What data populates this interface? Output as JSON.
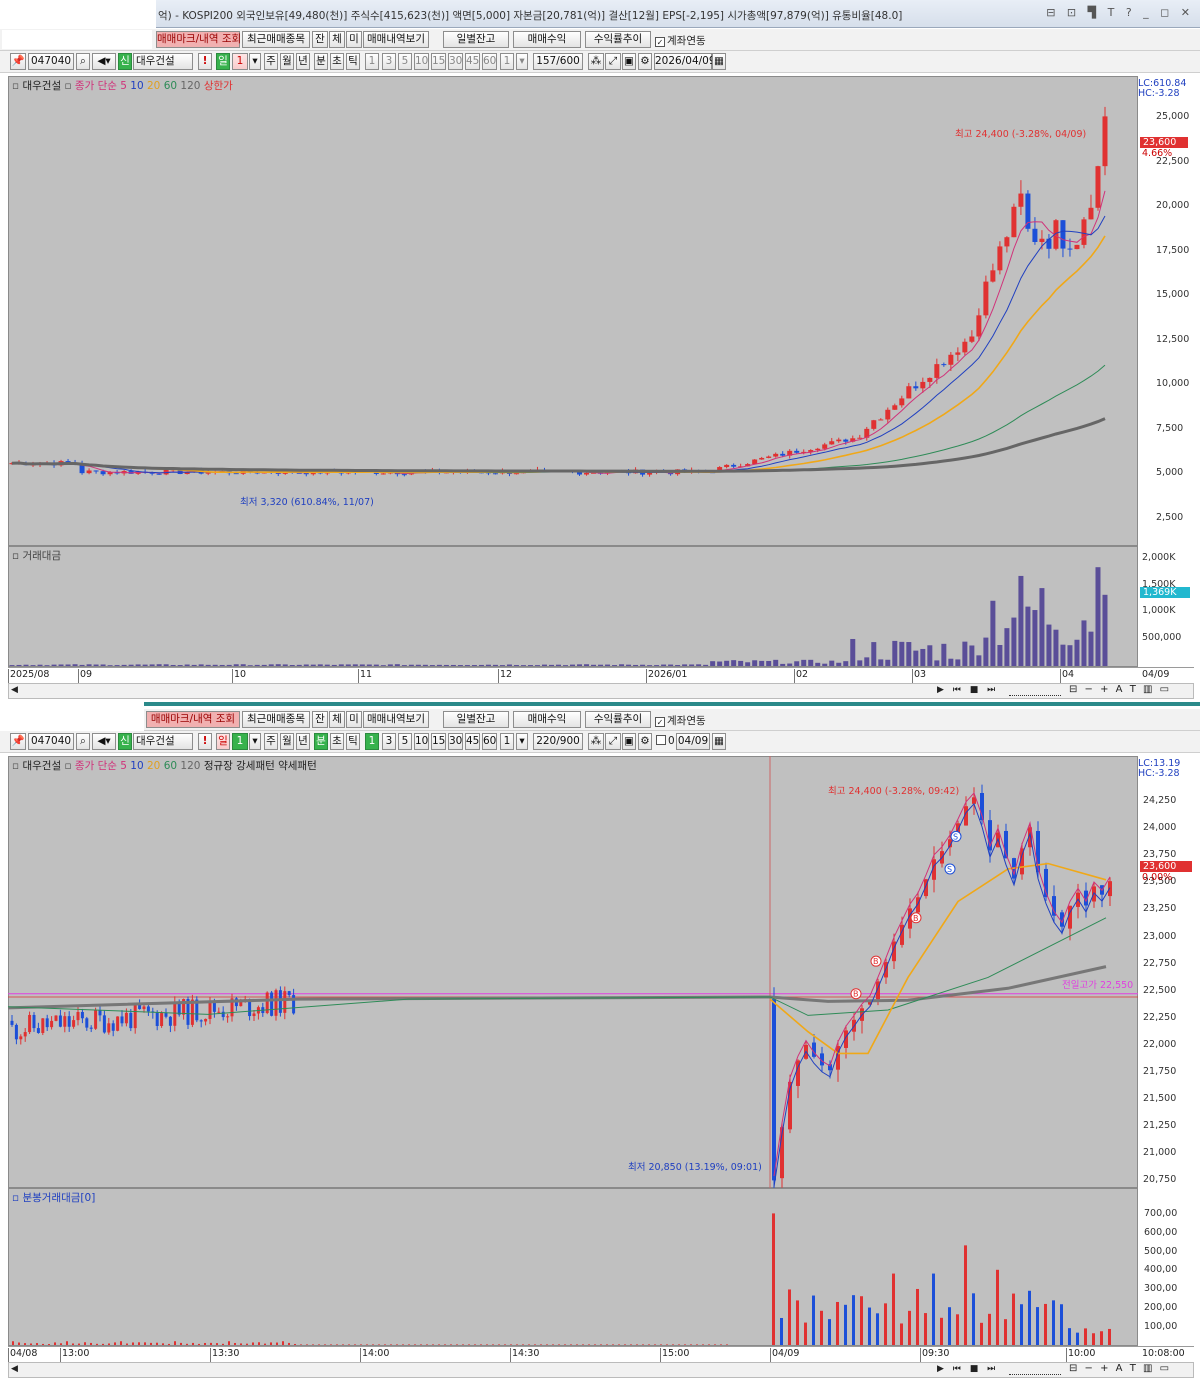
{
  "window": {
    "title_info": "억) - KOSPI200 외국인보유[49,480(천)] 주식수[415,623(천)] 액면[5,000] 자본금[20,781(억)] 결산[12월] EPS[-2,195] 시가총액[97,879(억)] 유통비율[48.0]",
    "controls": "⊟ ⊡ ▜ T ? _ ◻ ✕"
  },
  "toolbar_top": {
    "buttons": [
      "매매마크/내역 조회",
      "최근매매종목",
      "잔",
      "체",
      "미",
      "매매내역보기",
      "일별잔고",
      "매매수익",
      "수익률추이"
    ],
    "checkbox_label": "계좌연동"
  },
  "chart1": {
    "code": "047040",
    "badge": "신",
    "name": "대우건설",
    "periods": [
      "주",
      "월",
      "년",
      "분",
      "초",
      "틱"
    ],
    "active_period": "일",
    "count": "1",
    "intervals": [
      "1",
      "3",
      "5",
      "10",
      "15",
      "30",
      "45",
      "60"
    ],
    "interval_value": "1",
    "range": "157/600",
    "date": "2026/04/09",
    "legend": {
      "name": "대우건설",
      "ma_label": "종가 단순 5",
      "ma10": "10",
      "ma20": "20",
      "ma60": "60",
      "ma120": "120",
      "limit": "상한가"
    },
    "lc": "LC:610.84",
    "hc": "HC:-3.28",
    "y_ticks": [
      "25,000",
      "22,500",
      "20,000",
      "17,500",
      "15,000",
      "12,500",
      "10,000",
      "7,500",
      "5,000",
      "2,500"
    ],
    "price_box": "23,600",
    "pct": "4.66%",
    "high_note": "최고 24,400 (-3.28%, 04/09)",
    "low_note": "최저 3,320 (610.84%, 11/07)",
    "volume_title": "거래대금",
    "vol_ticks": [
      "2,000K",
      "1,500K",
      "1,000K",
      "500,000"
    ],
    "vol_box": "1,369K",
    "x_ticks": [
      "2025/08",
      "09",
      "10",
      "11",
      "12",
      "2026/01",
      "02",
      "03",
      "04"
    ],
    "x_last": "04/09",
    "chart_data": {
      "type": "candlestick",
      "x": [
        "2025/08",
        "09",
        "10",
        "11",
        "12",
        "2026/01",
        "02",
        "03",
        "04"
      ],
      "close_last": 23600,
      "high": 24400,
      "low": 3320,
      "ylim": [
        0,
        26000
      ]
    }
  },
  "toolbar_bottom": {
    "buttons": [
      "매매마크/내역 조회",
      "최근매매종목",
      "잔",
      "체",
      "미",
      "매매내역보기",
      "일별잔고",
      "매매수익",
      "수익률추이"
    ],
    "checkbox_label": "계좌연동"
  },
  "chart2": {
    "code": "047040",
    "badge": "신",
    "name": "대우건설",
    "day_period": "일",
    "day_count": "1",
    "periods": [
      "주",
      "월",
      "년",
      "분",
      "초",
      "틱"
    ],
    "active_period": "분",
    "intervals": [
      "1",
      "3",
      "5",
      "10",
      "15",
      "30",
      "45",
      "60"
    ],
    "active_interval": "1",
    "interval_value": "1",
    "range": "220/900",
    "check_value": "0",
    "date": "04/09",
    "legend": {
      "name": "대우건설",
      "ma_label": "종가 단순 5",
      "ma10": "10",
      "ma20": "20",
      "ma60": "60",
      "ma120": "120",
      "extra": "정규장 강세패턴  약세패턴"
    },
    "lc": "LC:13.19",
    "hc": "HC:-3.28",
    "y_ticks": [
      "24,250",
      "24,000",
      "23,750",
      "23,500",
      "23,250",
      "23,000",
      "22,750",
      "22,500",
      "22,250",
      "22,000",
      "21,750",
      "21,500",
      "21,250",
      "21,000",
      "20,750"
    ],
    "price_box": "23,600",
    "pct": "0.00%",
    "high_note": "최고 24,400 (-3.28%, 09:42)",
    "low_note": "최저 20,850 (13.19%, 09:01)",
    "prev_high_note": "전일고가 22,550",
    "volume_title": "분봉거래대금[0]",
    "vol_ticks": [
      "700,00",
      "600,00",
      "500,00",
      "400,00",
      "300,00",
      "200,00",
      "100,00"
    ],
    "x_ticks": [
      "04/08",
      "13:00",
      "13:30",
      "14:00",
      "14:30",
      "15:00",
      "04/09",
      "09:30",
      "10:00"
    ],
    "x_last": "10:08:00"
  },
  "scroll": {
    "icons": "▶ ⏮ ■ ⏭",
    "tools": "⊟ − + A T ▥ ▭"
  }
}
